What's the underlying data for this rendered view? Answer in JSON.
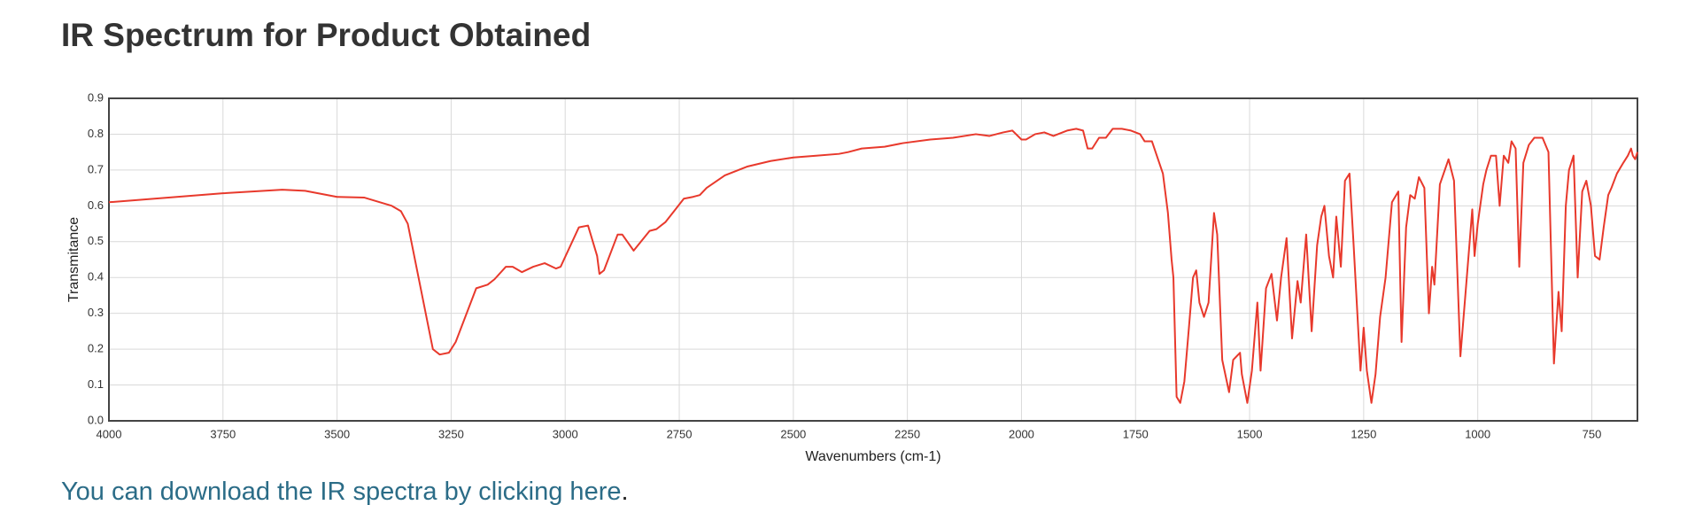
{
  "header": {
    "title": "IR Spectrum for Product Obtained"
  },
  "chart_data": {
    "type": "line",
    "xlabel": "Wavenumbers (cm-1)",
    "ylabel": "Transmitance",
    "color": "#e8392c",
    "grid": true,
    "xlim": [
      4000,
      650
    ],
    "ylim": [
      0,
      0.9
    ],
    "xticks": [
      4000,
      3750,
      3500,
      3250,
      3000,
      2750,
      2500,
      2250,
      2000,
      1750,
      1500,
      1250,
      1000,
      750
    ],
    "yticks": [
      {
        "value": 0,
        "label": "0.0"
      },
      0.1,
      0.2,
      0.3,
      0.4,
      0.5,
      0.6,
      0.7,
      0.8,
      0.9
    ],
    "x": [
      4000,
      3750,
      3620,
      3570,
      3500,
      3440,
      3380,
      3360,
      3345,
      3290,
      3275,
      3255,
      3240,
      3195,
      3170,
      3155,
      3130,
      3115,
      3095,
      3070,
      3045,
      3020,
      3010,
      2970,
      2950,
      2930,
      2925,
      2915,
      2885,
      2875,
      2850,
      2815,
      2800,
      2780,
      2740,
      2720,
      2705,
      2690,
      2650,
      2600,
      2550,
      2500,
      2450,
      2400,
      2380,
      2350,
      2300,
      2260,
      2200,
      2150,
      2100,
      2070,
      2040,
      2020,
      2000,
      1990,
      1970,
      1950,
      1930,
      1900,
      1880,
      1865,
      1855,
      1845,
      1830,
      1815,
      1800,
      1780,
      1760,
      1740,
      1730,
      1714,
      1690,
      1679,
      1671,
      1667,
      1660,
      1652,
      1643,
      1633,
      1624,
      1617,
      1610,
      1600,
      1590,
      1578,
      1571,
      1560,
      1545,
      1536,
      1521,
      1517,
      1505,
      1495,
      1483,
      1476,
      1464,
      1452,
      1440,
      1431,
      1419,
      1407,
      1395,
      1388,
      1376,
      1364,
      1352,
      1343,
      1336,
      1326,
      1317,
      1310,
      1300,
      1291,
      1281,
      1272,
      1257,
      1250,
      1243,
      1233,
      1224,
      1214,
      1202,
      1188,
      1174,
      1167,
      1157,
      1148,
      1138,
      1129,
      1117,
      1107,
      1100,
      1095,
      1083,
      1064,
      1052,
      1038,
      1024,
      1012,
      1007,
      1000,
      988,
      981,
      971,
      960,
      952,
      943,
      933,
      926,
      917,
      909,
      900,
      888,
      876,
      867,
      858,
      845,
      833,
      823,
      816,
      807,
      800,
      790,
      781,
      771,
      762,
      752,
      743,
      733,
      724,
      714,
      707,
      695,
      681,
      671,
      664,
      660,
      655,
      650
    ],
    "values": [
      0.61,
      0.635,
      0.645,
      0.642,
      0.625,
      0.623,
      0.6,
      0.585,
      0.55,
      0.2,
      0.185,
      0.19,
      0.22,
      0.37,
      0.38,
      0.395,
      0.43,
      0.43,
      0.415,
      0.43,
      0.44,
      0.425,
      0.43,
      0.54,
      0.545,
      0.46,
      0.41,
      0.42,
      0.52,
      0.52,
      0.475,
      0.53,
      0.535,
      0.555,
      0.62,
      0.625,
      0.63,
      0.65,
      0.685,
      0.71,
      0.725,
      0.735,
      0.74,
      0.745,
      0.75,
      0.76,
      0.765,
      0.775,
      0.785,
      0.79,
      0.8,
      0.795,
      0.805,
      0.81,
      0.785,
      0.785,
      0.8,
      0.805,
      0.795,
      0.81,
      0.815,
      0.81,
      0.76,
      0.76,
      0.79,
      0.79,
      0.815,
      0.815,
      0.81,
      0.8,
      0.78,
      0.78,
      0.69,
      0.58,
      0.45,
      0.4,
      0.067,
      0.05,
      0.11,
      0.26,
      0.4,
      0.42,
      0.33,
      0.29,
      0.33,
      0.58,
      0.52,
      0.17,
      0.08,
      0.17,
      0.19,
      0.13,
      0.05,
      0.14,
      0.33,
      0.14,
      0.37,
      0.41,
      0.28,
      0.4,
      0.51,
      0.23,
      0.39,
      0.33,
      0.52,
      0.25,
      0.49,
      0.57,
      0.6,
      0.46,
      0.4,
      0.57,
      0.43,
      0.67,
      0.69,
      0.49,
      0.14,
      0.26,
      0.14,
      0.05,
      0.13,
      0.29,
      0.4,
      0.61,
      0.64,
      0.22,
      0.54,
      0.63,
      0.62,
      0.68,
      0.65,
      0.3,
      0.43,
      0.38,
      0.66,
      0.73,
      0.67,
      0.18,
      0.4,
      0.59,
      0.46,
      0.55,
      0.66,
      0.7,
      0.74,
      0.74,
      0.6,
      0.74,
      0.72,
      0.78,
      0.76,
      0.43,
      0.72,
      0.77,
      0.79,
      0.79,
      0.79,
      0.75,
      0.16,
      0.36,
      0.25,
      0.6,
      0.7,
      0.74,
      0.4,
      0.64,
      0.67,
      0.6,
      0.46,
      0.45,
      0.54,
      0.63,
      0.65,
      0.69,
      0.72,
      0.74,
      0.76,
      0.74,
      0.73,
      0.75
    ]
  },
  "link": {
    "text": "You can download the IR spectra by clicking here",
    "suffix": "."
  }
}
